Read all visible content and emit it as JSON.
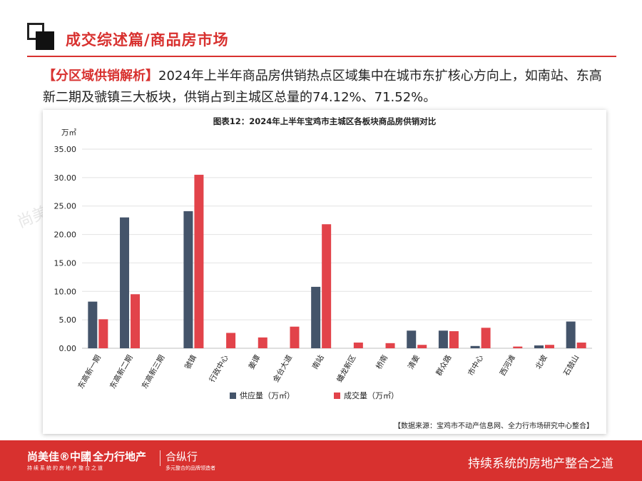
{
  "header": {
    "title": "成交综述篇/商品房市场"
  },
  "intro": {
    "tag": "【分区域供销解析】",
    "text": "2024年上半年商品房供销热点区域集中在城市东扩核心方向上，如南站、东高新二期及虢镇三大板块，供销占到主城区总量的74.12%、71.52%。"
  },
  "chart": {
    "unit": "万㎡",
    "source": "【数据来源：宝鸡市不动产信息网、全力行市场研究中心整合】"
  },
  "chart_data": {
    "type": "bar",
    "title": "图表12：2024年上半年宝鸡市主城区各板块商品房供销对比",
    "ylabel": "万㎡",
    "ylim": [
      0,
      35
    ],
    "yticks": [
      "35.00",
      "30.00",
      "25.00",
      "20.00",
      "15.00",
      "10.00",
      "5.00",
      "0.00"
    ],
    "grid": true,
    "legend_position": "bottom",
    "categories": [
      "东高新一期",
      "东高新二期",
      "东高新三期",
      "虢镇",
      "行政中心",
      "姜谭",
      "金台大道",
      "南站",
      "蟠龙新区",
      "桥南",
      "清姜",
      "群众路",
      "市中心",
      "西河滩",
      "北坡",
      "石鼓山"
    ],
    "series": [
      {
        "name": "供应量（万㎡）",
        "color": "#44546a",
        "values": [
          8.2,
          23.0,
          0,
          24.1,
          0,
          0,
          0,
          10.8,
          0,
          0,
          3.1,
          3.1,
          0.4,
          0,
          0.5,
          4.7
        ]
      },
      {
        "name": "成交量（万㎡）",
        "color": "#e2434a",
        "values": [
          5.1,
          9.5,
          0,
          30.5,
          2.7,
          1.9,
          3.8,
          21.8,
          1.0,
          0.9,
          0.6,
          3.0,
          3.6,
          0.3,
          0.6,
          1.0
        ]
      }
    ]
  },
  "footer": {
    "brand1": "尚美佳®中國",
    "brand1_sub": "持续系统的房地产整合之道",
    "brand2": "全力行地产",
    "brand3": "合纵行",
    "brand3_sub": "多元整合的品牌领造者",
    "slogan": "持续系统的房地产整合之道"
  },
  "colors": {
    "accent": "#d8312f",
    "supply": "#44546a",
    "sales": "#e2434a"
  }
}
